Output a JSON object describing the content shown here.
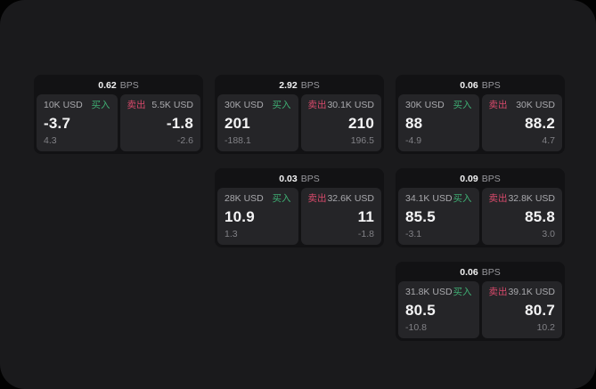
{
  "colors": {
    "buy": "#3fae73",
    "sell": "#d84a6b"
  },
  "labels": {
    "buy": "买入",
    "sell": "卖出",
    "unit": "BPS"
  },
  "cards": [
    {
      "bps": "0.62",
      "buy": {
        "amount": "10K USD",
        "price": "-3.7",
        "delta": "4.3"
      },
      "sell": {
        "amount": "5.5K USD",
        "price": "-1.8",
        "delta": "-2.6"
      }
    },
    {
      "bps": "2.92",
      "buy": {
        "amount": "30K USD",
        "price": "201",
        "delta": "-188.1"
      },
      "sell": {
        "amount": "30.1K USD",
        "price": "210",
        "delta": "196.5"
      }
    },
    {
      "bps": "0.06",
      "buy": {
        "amount": "30K USD",
        "price": "88",
        "delta": "-4.9"
      },
      "sell": {
        "amount": "30K USD",
        "price": "88.2",
        "delta": "4.7"
      }
    },
    {
      "bps": "0.03",
      "buy": {
        "amount": "28K USD",
        "price": "10.9",
        "delta": "1.3"
      },
      "sell": {
        "amount": "32.6K USD",
        "price": "11",
        "delta": "-1.8"
      }
    },
    {
      "bps": "0.09",
      "buy": {
        "amount": "34.1K USD",
        "price": "85.5",
        "delta": "-3.1"
      },
      "sell": {
        "amount": "32.8K USD",
        "price": "85.8",
        "delta": "3.0"
      }
    },
    {
      "bps": "0.06",
      "buy": {
        "amount": "31.8K USD",
        "price": "80.5",
        "delta": "-10.8"
      },
      "sell": {
        "amount": "39.1K USD",
        "price": "80.7",
        "delta": "10.2"
      }
    }
  ]
}
